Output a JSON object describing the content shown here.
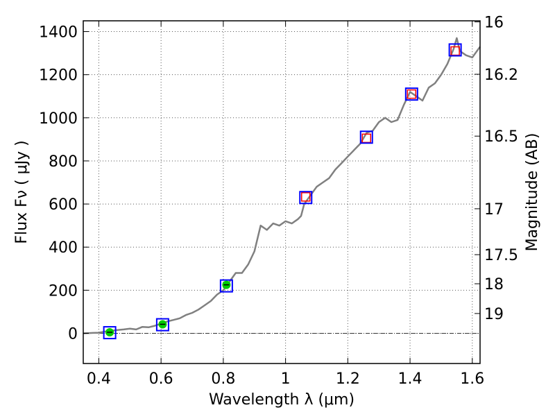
{
  "chart_data": {
    "type": "line",
    "title": "",
    "xlabel": "Wavelength  λ (μm)",
    "ylabel": "Flux  Fν ( μJy )",
    "ylabel_right": "Magnitude (AB)",
    "xlim": [
      0.35,
      1.625
    ],
    "ylim": [
      -140,
      1450
    ],
    "grid": true,
    "x_ticks": [
      0.4,
      0.6,
      0.8,
      1.0,
      1.2,
      1.4,
      1.6
    ],
    "x_tick_labels": [
      "0.4",
      "0.6",
      "0.8",
      "1",
      "1.2",
      "1.4",
      "1.6"
    ],
    "y_ticks": [
      0,
      200,
      400,
      600,
      800,
      1000,
      1200,
      1400
    ],
    "y_tick_labels": [
      "0",
      "200",
      "400",
      "600",
      "800",
      "1000",
      "1200",
      "1400"
    ],
    "right_ticks": [
      {
        "label": "16",
        "flux": 1445
      },
      {
        "label": "16.2",
        "flux": 1202
      },
      {
        "label": "16.5",
        "flux": 915
      },
      {
        "label": "17",
        "flux": 578
      },
      {
        "label": "17.5",
        "flux": 365
      },
      {
        "label": "18",
        "flux": 230
      },
      {
        "label": "19",
        "flux": 92
      }
    ],
    "colors": {
      "spectrum": "#808080",
      "model_box": "#0000ff",
      "nir_point": "#ff0000",
      "optical_point": "#00cc00",
      "zero_line": "#333333"
    },
    "series": [
      {
        "role": "spectrum",
        "x": [
          0.35,
          0.38,
          0.4,
          0.42,
          0.44,
          0.46,
          0.48,
          0.5,
          0.52,
          0.54,
          0.56,
          0.58,
          0.6,
          0.62,
          0.64,
          0.66,
          0.68,
          0.7,
          0.72,
          0.74,
          0.76,
          0.78,
          0.8,
          0.82,
          0.84,
          0.86,
          0.88,
          0.9,
          0.92,
          0.94,
          0.96,
          0.98,
          1.0,
          1.02,
          1.04,
          1.05,
          1.06,
          1.08,
          1.1,
          1.12,
          1.14,
          1.16,
          1.18,
          1.2,
          1.22,
          1.24,
          1.26,
          1.28,
          1.3,
          1.32,
          1.34,
          1.36,
          1.38,
          1.4,
          1.42,
          1.44,
          1.46,
          1.48,
          1.5,
          1.52,
          1.54,
          1.55,
          1.56,
          1.58,
          1.6,
          1.625
        ],
        "y": [
          0,
          2,
          3,
          8,
          12,
          15,
          18,
          22,
          18,
          30,
          28,
          35,
          45,
          55,
          62,
          70,
          85,
          95,
          110,
          130,
          150,
          180,
          200,
          240,
          280,
          280,
          320,
          380,
          500,
          480,
          510,
          500,
          520,
          510,
          530,
          545,
          600,
          640,
          680,
          700,
          720,
          760,
          790,
          820,
          850,
          880,
          930,
          940,
          980,
          1000,
          980,
          990,
          1060,
          1120,
          1100,
          1080,
          1140,
          1160,
          1200,
          1250,
          1320,
          1370,
          1310,
          1290,
          1280,
          1330
        ]
      },
      {
        "role": "model-boxes",
        "x": [
          0.435,
          0.605,
          0.81,
          1.065,
          1.26,
          1.405,
          1.545
        ],
        "y": [
          3,
          40,
          220,
          630,
          910,
          1110,
          1315
        ]
      },
      {
        "role": "nir-points",
        "x": [
          1.065,
          1.26,
          1.405,
          1.545
        ],
        "y": [
          633,
          905,
          1110,
          1310
        ]
      },
      {
        "role": "optical-points",
        "x": [
          0.435,
          0.605,
          0.81
        ],
        "y": [
          5,
          42,
          225
        ]
      }
    ]
  }
}
